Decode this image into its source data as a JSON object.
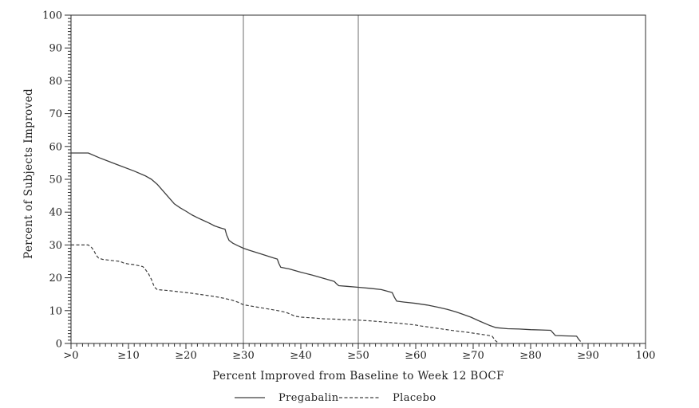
{
  "figure": {
    "background": "#ffffff"
  },
  "colors": {
    "curve": "#3d3d3d",
    "frame": "#2e2e2e",
    "tick": "#2e2e2e",
    "text": "#1f1f1f",
    "reference_line": "#6e6e6e"
  },
  "chart_data": {
    "type": "line",
    "title": "",
    "xlabel": "Percent Improved from Baseline to Week 12 BOCF",
    "ylabel": "Percent of Subjects Improved",
    "xlim": [
      0,
      100
    ],
    "ylim": [
      0,
      100
    ],
    "grid": false,
    "legend_position": "bottom",
    "minor_tick_step": 1,
    "major_tick_step": 10,
    "x_tick_values": [
      0,
      10,
      20,
      30,
      40,
      50,
      60,
      70,
      80,
      90,
      100
    ],
    "x_tick_labels": [
      ">0",
      "≥10",
      "≥20",
      "≥30",
      "≥40",
      "≥50",
      "≥60",
      "≥70",
      "≥80",
      "≥90",
      "100"
    ],
    "y_tick_values": [
      0,
      10,
      20,
      30,
      40,
      50,
      60,
      70,
      80,
      90,
      100
    ],
    "y_tick_labels": [
      "0",
      "10",
      "20",
      "30",
      "40",
      "50",
      "60",
      "70",
      "80",
      "90",
      "100"
    ],
    "reference_lines_x": [
      30,
      50
    ],
    "series": [
      {
        "name": "Pregabalin",
        "style": "solid",
        "points": [
          [
            0,
            58
          ],
          [
            3,
            58
          ],
          [
            5,
            56.5
          ],
          [
            8,
            54.5
          ],
          [
            11,
            52.5
          ],
          [
            13,
            51
          ],
          [
            14,
            50
          ],
          [
            15,
            48.5
          ],
          [
            16,
            46.5
          ],
          [
            17,
            44.5
          ],
          [
            18,
            42.5
          ],
          [
            19,
            41.3
          ],
          [
            20,
            40.3
          ],
          [
            21,
            39.2
          ],
          [
            22,
            38.3
          ],
          [
            23,
            37.5
          ],
          [
            24,
            36.7
          ],
          [
            25,
            35.8
          ],
          [
            26,
            35.2
          ],
          [
            26.8,
            34.8
          ],
          [
            27.1,
            33
          ],
          [
            27.5,
            31.4
          ],
          [
            28.2,
            30.5
          ],
          [
            29,
            29.8
          ],
          [
            30,
            29
          ],
          [
            31,
            28.4
          ],
          [
            33,
            27.3
          ],
          [
            35,
            26.2
          ],
          [
            35.9,
            25.7
          ],
          [
            36.2,
            24.3
          ],
          [
            36.5,
            23.2
          ],
          [
            38,
            22.7
          ],
          [
            40,
            21.7
          ],
          [
            42,
            20.8
          ],
          [
            44,
            19.8
          ],
          [
            45.8,
            18.9
          ],
          [
            46.2,
            18.2
          ],
          [
            46.6,
            17.6
          ],
          [
            48,
            17.4
          ],
          [
            50,
            17.1
          ],
          [
            52,
            16.8
          ],
          [
            54,
            16.4
          ],
          [
            55.9,
            15.5
          ],
          [
            56.3,
            14
          ],
          [
            56.7,
            12.9
          ],
          [
            58,
            12.6
          ],
          [
            60,
            12.2
          ],
          [
            62,
            11.7
          ],
          [
            64,
            11
          ],
          [
            65.5,
            10.4
          ],
          [
            67,
            9.6
          ],
          [
            68,
            9
          ],
          [
            69.6,
            8
          ],
          [
            71,
            6.9
          ],
          [
            73,
            5.4
          ],
          [
            74,
            4.8
          ],
          [
            76,
            4.5
          ],
          [
            78,
            4.4
          ],
          [
            80,
            4.2
          ],
          [
            82,
            4.1
          ],
          [
            83.5,
            4
          ],
          [
            83.9,
            3.2
          ],
          [
            84.3,
            2.4
          ],
          [
            86,
            2.3
          ],
          [
            88,
            2.2
          ],
          [
            88.4,
            1.2
          ],
          [
            88.7,
            0.6
          ]
        ]
      },
      {
        "name": "Placebo",
        "style": "dashed",
        "points": [
          [
            0,
            30
          ],
          [
            3,
            30
          ],
          [
            3.6,
            29.2
          ],
          [
            4,
            28.2
          ],
          [
            4.4,
            26.8
          ],
          [
            4.8,
            26
          ],
          [
            5.5,
            25.6
          ],
          [
            7,
            25.3
          ],
          [
            8.5,
            25
          ],
          [
            9.2,
            24.5
          ],
          [
            10,
            24.2
          ],
          [
            11,
            24
          ],
          [
            12.5,
            23.4
          ],
          [
            13,
            22.4
          ],
          [
            13.5,
            21.2
          ],
          [
            14,
            19.5
          ],
          [
            14.5,
            17.2
          ],
          [
            15,
            16.4
          ],
          [
            17,
            16.1
          ],
          [
            19,
            15.7
          ],
          [
            21,
            15.3
          ],
          [
            23,
            14.8
          ],
          [
            25,
            14.3
          ],
          [
            26.5,
            13.8
          ],
          [
            28,
            13.2
          ],
          [
            29,
            12.6
          ],
          [
            29.6,
            12.1
          ],
          [
            30,
            11.8
          ],
          [
            32,
            11.2
          ],
          [
            34,
            10.6
          ],
          [
            36,
            10
          ],
          [
            37.4,
            9.5
          ],
          [
            38.2,
            8.9
          ],
          [
            39,
            8.3
          ],
          [
            40,
            8
          ],
          [
            42,
            7.8
          ],
          [
            44,
            7.5
          ],
          [
            46,
            7.4
          ],
          [
            48,
            7.2
          ],
          [
            50,
            7.1
          ],
          [
            52,
            6.9
          ],
          [
            54,
            6.6
          ],
          [
            56,
            6.3
          ],
          [
            58,
            6
          ],
          [
            60,
            5.6
          ],
          [
            61,
            5.3
          ],
          [
            63,
            4.8
          ],
          [
            65,
            4.3
          ],
          [
            67,
            3.8
          ],
          [
            69,
            3.4
          ],
          [
            71,
            2.9
          ],
          [
            72.5,
            2.5
          ],
          [
            73.3,
            2.2
          ],
          [
            73.8,
            1
          ],
          [
            74.2,
            0.4
          ]
        ]
      }
    ]
  }
}
